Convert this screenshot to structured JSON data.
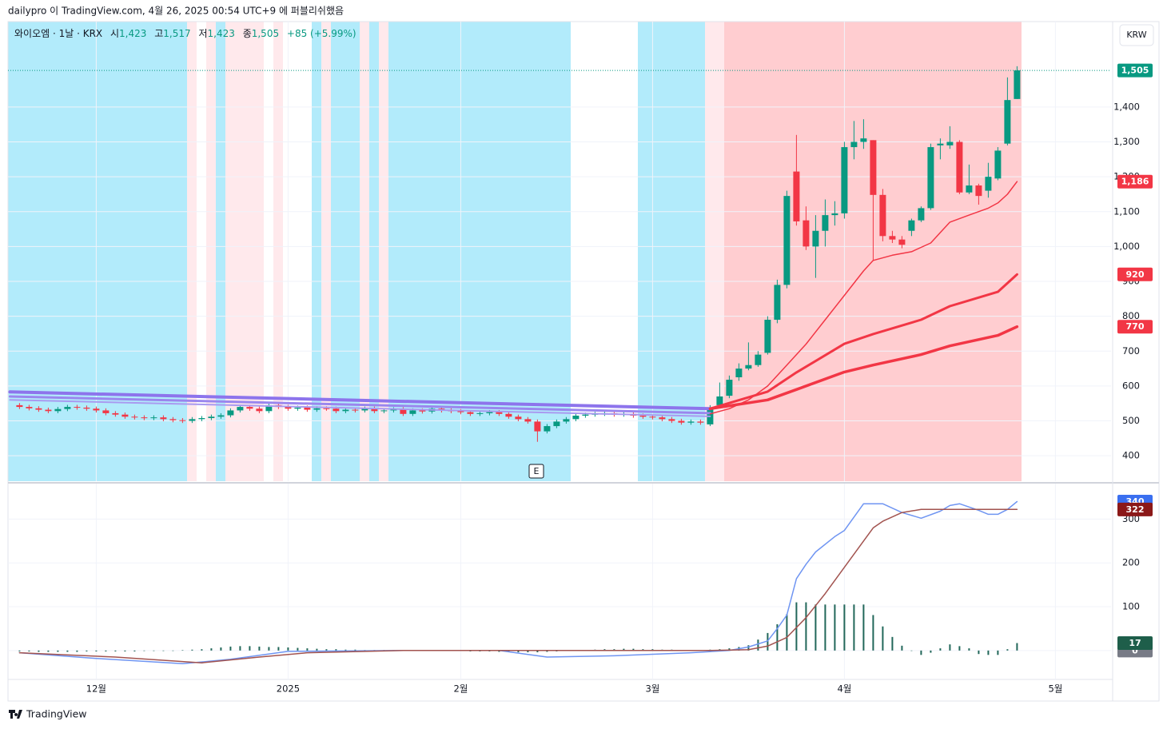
{
  "header": {
    "text": "dailypro 이 TradingView.com, 4월 26, 2025 00:54 UTC+9 에 퍼블리쉬했음"
  },
  "currency_button": "KRW",
  "event_marker": "E",
  "footer": {
    "brand": "TradingView"
  },
  "chart_data": [
    {
      "type": "candlestick",
      "legend": {
        "symbol": "와이오엠 · 1날 · KRX",
        "open_label": "시",
        "open": "1,423",
        "high_label": "고",
        "high": "1,517",
        "low_label": "저",
        "low": "1,423",
        "close_label": "종",
        "close": "1,505",
        "change": "+85 (+5.99%)"
      },
      "up_color": "#089981",
      "down_color": "#f23645",
      "open": [
        545,
        540,
        536,
        532,
        528,
        534,
        540,
        538,
        535,
        530,
        522,
        518,
        512,
        510,
        508,
        510,
        505,
        502,
        500,
        505,
        508,
        512,
        516,
        530,
        540,
        535,
        528,
        545,
        540,
        535,
        538,
        532,
        536,
        535,
        528,
        532,
        530,
        535,
        528,
        530,
        533,
        520,
        530,
        527,
        535,
        530,
        528,
        525,
        520,
        522,
        525,
        520,
        512,
        505,
        498,
        470,
        485,
        498,
        505,
        515,
        518,
        520,
        522,
        518,
        520,
        515,
        512,
        510,
        505,
        500,
        495,
        498,
        490,
        545,
        572,
        625,
        650,
        660,
        695,
        790,
        890,
        1215,
        1075,
        1000,
        1045,
        1090,
        1095,
        1285,
        1300,
        1305,
        1148,
        1030,
        1020,
        1045,
        1075,
        1110,
        1290,
        1290,
        1300,
        1155,
        1175,
        1160,
        1195,
        1295,
        1423
      ],
      "high": [
        551,
        546,
        542,
        538,
        540,
        546,
        546,
        544,
        541,
        536,
        528,
        524,
        518,
        516,
        516,
        516,
        511,
        508,
        511,
        514,
        518,
        522,
        536,
        546,
        546,
        541,
        551,
        551,
        546,
        544,
        544,
        542,
        542,
        541,
        538,
        538,
        541,
        541,
        536,
        539,
        539,
        536,
        536,
        541,
        541,
        536,
        534,
        531,
        528,
        531,
        531,
        526,
        518,
        511,
        504,
        491,
        504,
        511,
        521,
        524,
        526,
        528,
        528,
        526,
        526,
        521,
        518,
        516,
        511,
        506,
        504,
        504,
        545,
        610,
        630,
        665,
        725,
        700,
        800,
        905,
        1160,
        1320,
        1115,
        1090,
        1135,
        1130,
        1300,
        1360,
        1365,
        1305,
        1165,
        1045,
        1030,
        1080,
        1115,
        1295,
        1310,
        1345,
        1305,
        1235,
        1180,
        1240,
        1285,
        1485,
        1517
      ],
      "low": [
        534,
        530,
        526,
        522,
        522,
        528,
        532,
        529,
        524,
        516,
        512,
        506,
        504,
        502,
        502,
        499,
        496,
        494,
        494,
        499,
        502,
        506,
        510,
        524,
        529,
        522,
        522,
        534,
        529,
        529,
        526,
        526,
        529,
        522,
        522,
        524,
        524,
        522,
        522,
        524,
        514,
        514,
        521,
        521,
        524,
        522,
        519,
        514,
        514,
        516,
        514,
        506,
        499,
        492,
        440,
        464,
        479,
        492,
        499,
        509,
        512,
        514,
        512,
        512,
        509,
        506,
        504,
        499,
        494,
        489,
        489,
        489,
        485,
        540,
        565,
        615,
        645,
        655,
        690,
        780,
        880,
        1060,
        990,
        910,
        1000,
        1060,
        1080,
        1250,
        1280,
        960,
        1015,
        1010,
        995,
        1030,
        1070,
        1105,
        1250,
        1280,
        1150,
        1150,
        1120,
        1140,
        1190,
        1290,
        1423
      ],
      "close": [
        540,
        536,
        532,
        528,
        534,
        540,
        538,
        535,
        530,
        522,
        518,
        512,
        510,
        508,
        510,
        505,
        502,
        500,
        505,
        508,
        512,
        516,
        530,
        540,
        535,
        528,
        545,
        540,
        535,
        538,
        532,
        536,
        535,
        528,
        532,
        530,
        535,
        528,
        530,
        533,
        520,
        530,
        527,
        535,
        530,
        528,
        525,
        520,
        522,
        525,
        520,
        512,
        505,
        498,
        470,
        485,
        498,
        505,
        515,
        518,
        520,
        522,
        518,
        520,
        515,
        512,
        510,
        505,
        500,
        495,
        498,
        495,
        537,
        570,
        618,
        650,
        660,
        690,
        790,
        890,
        1145,
        1072,
        1000,
        1045,
        1090,
        1095,
        1285,
        1300,
        1310,
        1148,
        1030,
        1020,
        1005,
        1075,
        1110,
        1285,
        1295,
        1300,
        1155,
        1175,
        1145,
        1200,
        1275,
        1420,
        1505
      ],
      "last_price": {
        "value": 1505,
        "label": "1,505"
      },
      "xlim": [
        -1.2,
        113.8
      ],
      "ylim": [
        327,
        1645
      ],
      "yticks": [
        400,
        500,
        600,
        700,
        800,
        900,
        {
          "value": 1000,
          "label": "1,000"
        },
        {
          "value": 1100,
          "label": "1,100"
        },
        {
          "value": 1200,
          "label": "1,200"
        },
        {
          "value": 1300,
          "label": "1,300"
        },
        {
          "value": 1400,
          "label": "1,400"
        }
      ],
      "grid": true,
      "series": [
        {
          "color": "#8d74ec",
          "width": 4,
          "x": [
            -1,
            72
          ],
          "values": [
            583,
            535
          ]
        },
        {
          "color": "#9a86ee",
          "width": 3,
          "x": [
            -1,
            72
          ],
          "values": [
            570,
            522
          ]
        },
        {
          "color": "#a99af0",
          "width": 2,
          "x": [
            -1,
            72
          ],
          "values": [
            560,
            513
          ]
        },
        {
          "color": "#f23645",
          "width": 1.5,
          "x": [
            72,
            74,
            76,
            78,
            80,
            82,
            84,
            86,
            88,
            89,
            91,
            93,
            95,
            96,
            97,
            99,
            101,
            102,
            103,
            104
          ],
          "values": [
            520,
            535,
            560,
            600,
            660,
            720,
            790,
            860,
            930,
            960,
            975,
            985,
            1010,
            1040,
            1070,
            1090,
            1110,
            1125,
            1150,
            1186
          ],
          "value_labels": [
            null,
            null,
            null,
            null,
            null,
            null,
            null,
            null,
            null,
            null,
            null,
            null,
            null,
            null,
            null,
            null,
            null,
            null,
            null,
            "1,186"
          ]
        },
        {
          "color": "#f23645",
          "width": 3,
          "x": [
            72,
            78,
            81,
            86,
            89,
            94,
            97,
            102,
            104
          ],
          "values": [
            535,
            584,
            639,
            721,
            749,
            790,
            829,
            870,
            920
          ]
        },
        {
          "color": "#f23645",
          "width": 3.5,
          "x": [
            72,
            78,
            81,
            86,
            89,
            94,
            97,
            102,
            104
          ],
          "values": [
            535,
            560,
            590,
            640,
            660,
            690,
            715,
            745,
            770
          ]
        }
      ]
    },
    {
      "type": "macd",
      "xlim": [
        -1.2,
        113.8
      ],
      "xticks": [
        {
          "value": 8,
          "label": "12월"
        },
        {
          "value": 28,
          "label": "2025"
        },
        {
          "value": 46,
          "label": "2월"
        },
        {
          "value": 66,
          "label": "3월"
        },
        {
          "value": 86,
          "label": "4월"
        },
        {
          "value": 108,
          "label": "5월"
        }
      ],
      "ylim": [
        -66,
        381
      ],
      "yticks": [
        0,
        100,
        200,
        300
      ],
      "grid": true,
      "series": [
        {
          "color": "#6f95f2",
          "label_color": "#3a6ff0",
          "x": [
            0,
            8,
            17,
            22,
            28,
            40,
            50,
            55,
            62,
            70,
            74,
            76,
            78,
            79,
            80,
            81,
            82,
            83,
            85,
            86,
            88,
            90,
            92,
            94,
            96,
            97,
            98,
            100,
            101,
            102,
            103,
            104
          ],
          "values": [
            -5,
            -18,
            -30,
            -20,
            -2,
            0,
            0,
            -15,
            -12,
            -5,
            0,
            8,
            22,
            50,
            81,
            164,
            197,
            225,
            260,
            274,
            335,
            335,
            315,
            302,
            318,
            331,
            335,
            320,
            311,
            311,
            322,
            340
          ]
        },
        {
          "color": "#a2534f",
          "label_color": "#8b1818",
          "x": [
            0,
            10,
            19,
            25,
            30,
            40,
            72,
            76,
            78,
            80,
            82,
            84,
            86,
            88,
            89,
            90,
            92,
            94,
            96,
            98,
            100,
            102,
            104
          ],
          "values": [
            -5,
            -15,
            -28,
            -15,
            -5,
            0,
            0,
            2,
            10,
            30,
            75,
            130,
            190,
            250,
            280,
            295,
            315,
            322,
            322,
            322,
            322,
            322,
            322
          ]
        },
        {
          "color": "#22675a"
        }
      ],
      "histogram": {
        "color": "#22675a",
        "values": [
          -2,
          -2,
          -3,
          -3,
          -3,
          -3,
          -3,
          -2,
          -2,
          -2,
          -2,
          -2,
          -2,
          -1,
          -1,
          -1,
          0,
          1,
          2,
          3,
          5,
          7,
          9,
          10,
          10,
          9,
          8,
          8,
          7,
          6,
          5,
          4,
          3,
          3,
          2,
          2,
          1,
          1,
          1,
          1,
          0,
          0,
          0,
          0,
          -1,
          -1,
          -1,
          -2,
          -2,
          -2,
          -3,
          -3,
          -4,
          -4,
          -4,
          -3,
          -2,
          -1,
          0,
          1,
          2,
          3,
          3,
          4,
          4,
          3,
          3,
          2,
          2,
          1,
          1,
          1,
          2,
          3,
          5,
          8,
          12,
          25,
          40,
          60,
          83,
          110,
          110,
          105,
          105,
          105,
          105,
          105,
          105,
          81,
          55,
          31,
          11,
          0,
          -10,
          -5,
          5,
          14,
          10,
          5,
          -8,
          -10,
          -10,
          3,
          17
        ]
      }
    }
  ]
}
